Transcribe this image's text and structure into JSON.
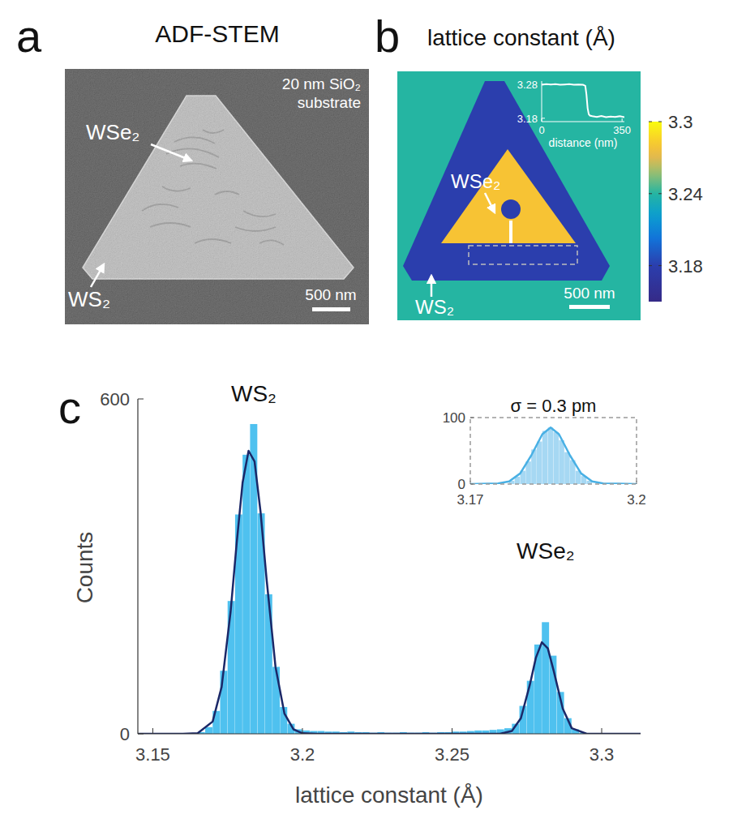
{
  "chart_data": [
    {
      "type": "image",
      "panel": "a",
      "title": "ADF-STEM",
      "note": [
        "20 nm SiO₂",
        "substrate"
      ],
      "labels": [
        "WSe₂",
        "WS₂"
      ],
      "scale_bar": "500 nm"
    },
    {
      "type": "heatmap",
      "panel": "b",
      "title": "lattice constant (Å)",
      "background": 3.24,
      "regions": [
        {
          "name": "WS₂",
          "value": 3.18
        },
        {
          "name": "WSe₂",
          "value": 3.28
        }
      ],
      "zlim": [
        3.15,
        3.3
      ],
      "zticks": [
        3.18,
        3.24,
        3.3
      ],
      "scale_bar": "500 nm",
      "inset": {
        "type": "line",
        "xlabel": "distance (nm)",
        "xlim": [
          0,
          360
        ],
        "xticks": [
          0,
          350
        ],
        "ylim": [
          3.17,
          3.29
        ],
        "yticks": [
          3.18,
          3.28
        ],
        "color": "#ffffff",
        "x": [
          0,
          20,
          40,
          60,
          80,
          100,
          120,
          140,
          160,
          180,
          190,
          195,
          200,
          205,
          210,
          220,
          240,
          260,
          280,
          300,
          320,
          340,
          360
        ],
        "values": [
          3.279,
          3.281,
          3.28,
          3.281,
          3.279,
          3.28,
          3.281,
          3.279,
          3.28,
          3.279,
          3.276,
          3.25,
          3.21,
          3.192,
          3.188,
          3.186,
          3.184,
          3.187,
          3.183,
          3.185,
          3.184,
          3.186,
          3.183
        ]
      }
    },
    {
      "type": "histogram",
      "panel": "c",
      "xlabel": "lattice constant (Å)",
      "ylabel": "Counts",
      "xlim": [
        3.145,
        3.313
      ],
      "ylim": [
        0,
        600
      ],
      "xticks": [
        3.15,
        3.2,
        3.25,
        3.3
      ],
      "yticks": [
        0,
        600
      ],
      "color": "#4fc1ef",
      "bins": [
        3.16,
        3.1625,
        3.165,
        3.1675,
        3.17,
        3.1725,
        3.175,
        3.1775,
        3.18,
        3.1825,
        3.185,
        3.1875,
        3.19,
        3.1925,
        3.195,
        3.1975,
        3.2,
        3.2025,
        3.205,
        3.2075,
        3.21,
        3.2125,
        3.215,
        3.2175,
        3.22,
        3.2225,
        3.225,
        3.2275,
        3.23,
        3.2325,
        3.235,
        3.2375,
        3.24,
        3.2425,
        3.245,
        3.2475,
        3.25,
        3.2525,
        3.255,
        3.2575,
        3.26,
        3.2625,
        3.265,
        3.2675,
        3.27,
        3.2725,
        3.275,
        3.2775,
        3.28,
        3.2825,
        3.285,
        3.2875,
        3.29,
        3.2925,
        3.295,
        3.2975,
        3.3
      ],
      "counts": [
        0,
        1,
        3,
        12,
        41,
        113,
        238,
        393,
        500,
        555,
        395,
        250,
        120,
        48,
        18,
        8,
        6,
        5,
        5,
        4,
        4,
        3,
        4,
        3,
        3,
        2,
        3,
        2,
        2,
        3,
        2,
        2,
        3,
        2,
        3,
        3,
        4,
        4,
        5,
        6,
        6,
        7,
        8,
        10,
        18,
        50,
        95,
        160,
        200,
        140,
        75,
        28,
        8,
        2,
        1,
        0
      ],
      "fit": {
        "color": "#1b2868",
        "x": [
          3.145,
          3.16,
          3.165,
          3.17,
          3.173,
          3.176,
          3.178,
          3.18,
          3.182,
          3.184,
          3.186,
          3.188,
          3.191,
          3.194,
          3.197,
          3.2,
          3.205,
          3.26,
          3.266,
          3.27,
          3.273,
          3.276,
          3.278,
          3.28,
          3.282,
          3.284,
          3.287,
          3.29,
          3.295,
          3.313
        ],
        "values": [
          0,
          0,
          1,
          22,
          84,
          219,
          340,
          450,
          507,
          488,
          398,
          278,
          120,
          36,
          8,
          1,
          0,
          0,
          0,
          5,
          28,
          88,
          136,
          164,
          153,
          112,
          45,
          10,
          0,
          0
        ]
      },
      "peak_labels": [
        "WS₂",
        "WSe₂"
      ],
      "inset": {
        "type": "histogram",
        "title": "σ = 0.3 pm",
        "xlim": [
          3.17,
          3.2
        ],
        "ylim": [
          0,
          100
        ],
        "xticks": [
          3.17,
          3.2
        ],
        "yticks": [
          0,
          100
        ],
        "color": "#a6d8f3",
        "bins": [
          3.177,
          3.178,
          3.179,
          3.18,
          3.181,
          3.182,
          3.183,
          3.184,
          3.185,
          3.186,
          3.187,
          3.188,
          3.189,
          3.19,
          3.191,
          3.192
        ],
        "counts": [
          5,
          11,
          20,
          34,
          52,
          64,
          80,
          85,
          78,
          66,
          48,
          36,
          20,
          12,
          5
        ],
        "fit": {
          "color": "#49b0e4",
          "x": [
            3.17,
            3.175,
            3.177,
            3.179,
            3.181,
            3.183,
            3.1845,
            3.186,
            3.188,
            3.19,
            3.192,
            3.194,
            3.2
          ],
          "values": [
            0,
            1,
            4,
            16,
            43,
            75,
            85,
            75,
            43,
            16,
            4,
            1,
            0
          ]
        }
      }
    }
  ]
}
